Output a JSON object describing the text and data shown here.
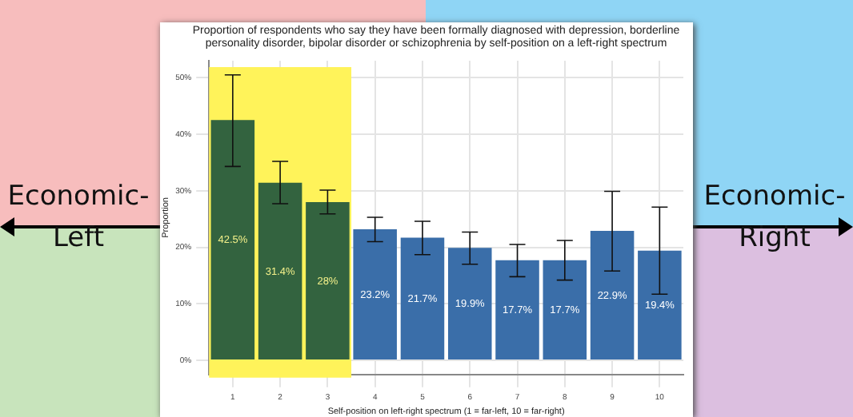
{
  "chart_data": {
    "type": "bar",
    "title": "Proportion of respondents who say they have been formally diagnosed with depression, borderline personality disorder, bipolar disorder or schizophrenia by self-position on a left-right spectrum",
    "xlabel": "Self-position on left-right spectrum (1 = far-left, 10 = far-right)",
    "ylabel": "Proportion",
    "categories": [
      "1",
      "2",
      "3",
      "4",
      "5",
      "6",
      "7",
      "8",
      "9",
      "10"
    ],
    "values": [
      42.5,
      31.4,
      28,
      23.2,
      21.7,
      19.9,
      17.7,
      17.7,
      22.9,
      19.4
    ],
    "colors": [
      "#33633f",
      "#33633f",
      "#33633f",
      "#3a6ea9",
      "#3a6ea9",
      "#3a6ea9",
      "#3a6ea9",
      "#3a6ea9",
      "#3a6ea9",
      "#3a6ea9"
    ],
    "value_labels": [
      "42.5%",
      "31.4%",
      "28%",
      "23.2%",
      "21.7%",
      "19.9%",
      "17.7%",
      "17.7%",
      "22.9%",
      "19.4%"
    ],
    "errors": [
      [
        34.3,
        50.5
      ],
      [
        27.7,
        35.2
      ],
      [
        25.9,
        30.1
      ],
      [
        21.0,
        25.3
      ],
      [
        18.7,
        24.6
      ],
      [
        17.0,
        22.7
      ],
      [
        14.8,
        20.5
      ],
      [
        14.2,
        21.2
      ],
      [
        15.8,
        29.9
      ],
      [
        11.7,
        27.1
      ]
    ],
    "ylim": [
      -2.5,
      53
    ],
    "yticks": [
      {
        "value": 0,
        "label": "0%"
      },
      {
        "value": 10,
        "label": "10%"
      },
      {
        "value": 20,
        "label": "20%"
      },
      {
        "value": 30,
        "label": "30%"
      },
      {
        "value": 40,
        "label": "40%"
      },
      {
        "value": 50,
        "label": "50%"
      }
    ],
    "bands": [
      {
        "axis": "x",
        "from": "1",
        "to": "3",
        "color": "#fff35a"
      }
    ],
    "annotations": [
      "Economic-Left",
      "Economic-Right"
    ],
    "grid": true,
    "legend": false
  }
}
